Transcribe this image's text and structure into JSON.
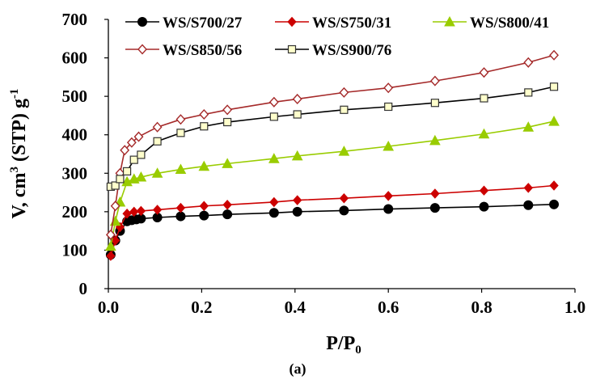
{
  "chart_data": {
    "type": "line",
    "xlabel": "P/P",
    "xlabel_sub": "0",
    "ylabel": "V, cm",
    "ylabel_sup": "3",
    "ylabel_mid": " (STP) g",
    "ylabel_sup2": "-1",
    "caption": "(a)",
    "xlim": [
      0,
      1.0
    ],
    "ylim": [
      0,
      700
    ],
    "x_ticks": [
      "0.0",
      "0.2",
      "0.4",
      "0.6",
      "0.8",
      "1.0"
    ],
    "y_ticks": [
      "0",
      "100",
      "200",
      "300",
      "400",
      "500",
      "600",
      "700"
    ],
    "grid": false,
    "legend_position": "top",
    "series": [
      {
        "name": "WS/S700/27",
        "color": "#000000",
        "marker": "circle",
        "x": [
          0.005,
          0.015,
          0.025,
          0.04,
          0.05,
          0.06,
          0.07,
          0.105,
          0.155,
          0.205,
          0.255,
          0.355,
          0.405,
          0.505,
          0.6,
          0.7,
          0.805,
          0.9,
          0.955
        ],
        "y": [
          88,
          125,
          150,
          175,
          178,
          180,
          182,
          185,
          188,
          190,
          193,
          197,
          200,
          203,
          207,
          210,
          213,
          217,
          219
        ]
      },
      {
        "name": "WS/S750/31",
        "color": "#cc0000",
        "marker": "diamond",
        "x": [
          0.005,
          0.015,
          0.025,
          0.04,
          0.055,
          0.07,
          0.105,
          0.155,
          0.205,
          0.255,
          0.355,
          0.405,
          0.505,
          0.6,
          0.7,
          0.805,
          0.9,
          0.955
        ],
        "y": [
          85,
          125,
          160,
          195,
          200,
          202,
          205,
          210,
          215,
          218,
          225,
          230,
          235,
          241,
          247,
          255,
          262,
          268
        ]
      },
      {
        "name": "WS/S800/41",
        "color": "#99cc00",
        "marker": "triangle",
        "x": [
          0.005,
          0.015,
          0.025,
          0.04,
          0.055,
          0.07,
          0.105,
          0.155,
          0.205,
          0.255,
          0.355,
          0.405,
          0.505,
          0.6,
          0.7,
          0.805,
          0.9,
          0.955
        ],
        "y": [
          110,
          175,
          225,
          278,
          285,
          290,
          300,
          310,
          318,
          325,
          338,
          345,
          357,
          370,
          385,
          402,
          420,
          435
        ]
      },
      {
        "name": "WS/S850/56",
        "color": "#a52a2a",
        "marker": "diamond-open",
        "x": [
          0.005,
          0.015,
          0.025,
          0.035,
          0.05,
          0.065,
          0.105,
          0.155,
          0.205,
          0.255,
          0.355,
          0.405,
          0.505,
          0.6,
          0.7,
          0.805,
          0.9,
          0.955
        ],
        "y": [
          140,
          215,
          300,
          360,
          380,
          395,
          420,
          440,
          453,
          465,
          485,
          493,
          510,
          522,
          540,
          562,
          588,
          607
        ]
      },
      {
        "name": "WS/S900/76",
        "color": "#000000",
        "marker": "square-open",
        "x": [
          0.005,
          0.015,
          0.025,
          0.04,
          0.055,
          0.07,
          0.105,
          0.155,
          0.205,
          0.255,
          0.355,
          0.405,
          0.505,
          0.6,
          0.7,
          0.805,
          0.9,
          0.955
        ],
        "y": [
          265,
          268,
          285,
          305,
          335,
          348,
          383,
          405,
          422,
          433,
          447,
          453,
          465,
          473,
          483,
          495,
          510,
          525
        ]
      }
    ]
  }
}
